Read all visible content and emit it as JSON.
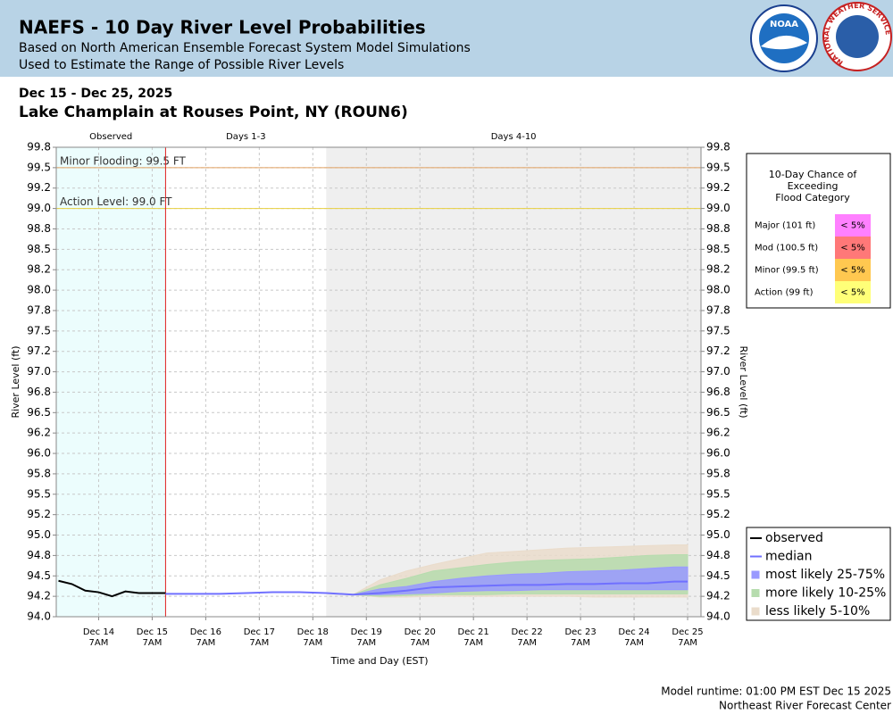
{
  "chart_data": {
    "type": "probability-band",
    "title": "NAEFS - 10 Day River Level Probabilities",
    "subtitle": [
      "Based on North American Ensemble Forecast System Model Simulations",
      "Used to Estimate the Range of Possible River Levels"
    ],
    "logos": [
      "NOAA",
      "NATIONAL WEATHER SERVICE"
    ],
    "date_range": "Dec 15 - Dec 25, 2025",
    "location": "Lake Champlain at Rouses Point, NY (ROUN6)",
    "x_label": "Time and Day (EST)",
    "y_label": "River Level (ft)",
    "footer": [
      "Model runtime: 01:00 PM EST Dec 15 2025",
      "Northeast River Forecast Center"
    ],
    "xlim": [
      "2025-12-13T12:00",
      "2025-12-25T13:00"
    ],
    "xticks": [
      {
        "value": "2025-12-14T07:00",
        "label": "Dec 14",
        "time": "7AM"
      },
      {
        "value": "2025-12-15T07:00",
        "label": "Dec 15",
        "time": "7AM"
      },
      {
        "value": "2025-12-16T07:00",
        "label": "Dec 16",
        "time": "7AM"
      },
      {
        "value": "2025-12-17T07:00",
        "label": "Dec 17",
        "time": "7AM"
      },
      {
        "value": "2025-12-18T07:00",
        "label": "Dec 18",
        "time": "7AM"
      },
      {
        "value": "2025-12-19T07:00",
        "label": "Dec 19",
        "time": "7AM"
      },
      {
        "value": "2025-12-20T07:00",
        "label": "Dec 20",
        "time": "7AM"
      },
      {
        "value": "2025-12-21T07:00",
        "label": "Dec 21",
        "time": "7AM"
      },
      {
        "value": "2025-12-22T07:00",
        "label": "Dec 22",
        "time": "7AM"
      },
      {
        "value": "2025-12-23T07:00",
        "label": "Dec 23",
        "time": "7AM"
      },
      {
        "value": "2025-12-24T07:00",
        "label": "Dec 24",
        "time": "7AM"
      },
      {
        "value": "2025-12-25T07:00",
        "label": "Dec 25",
        "time": "7AM"
      }
    ],
    "ylim": [
      94.0,
      99.75
    ],
    "yticks": [
      {
        "value": 94.0,
        "label": "94.0"
      },
      {
        "value": 94.25,
        "label": "94.2"
      },
      94.5,
      {
        "value": 94.75,
        "label": "94.8"
      },
      {
        "value": 95.0,
        "label": "95.0"
      },
      {
        "value": 95.25,
        "label": "95.2"
      },
      95.5,
      {
        "value": 95.75,
        "label": "95.8"
      },
      {
        "value": 96.0,
        "label": "96.0"
      },
      {
        "value": 96.25,
        "label": "96.2"
      },
      96.5,
      {
        "value": 96.75,
        "label": "96.8"
      },
      {
        "value": 97.0,
        "label": "97.0"
      },
      {
        "value": 97.25,
        "label": "97.2"
      },
      97.5,
      {
        "value": 97.75,
        "label": "97.8"
      },
      {
        "value": 98.0,
        "label": "98.0"
      },
      {
        "value": 98.25,
        "label": "98.2"
      },
      98.5,
      {
        "value": 98.75,
        "label": "98.8"
      },
      {
        "value": 99.0,
        "label": "99.0"
      },
      {
        "value": 99.25,
        "label": "99.2"
      },
      99.5,
      {
        "value": 99.75,
        "label": "99.8"
      }
    ],
    "grid": true,
    "regions": [
      {
        "label": "Observed",
        "start": "2025-12-13T12:00",
        "end": "2025-12-15T13:00",
        "color": "#ecfdfd"
      },
      {
        "label": "Days 1-3",
        "start": "2025-12-15T13:00",
        "end": "2025-12-18T13:00",
        "color": "#ffffff"
      },
      {
        "label": "Days 4-10",
        "start": "2025-12-18T13:00",
        "end": "2025-12-25T13:00",
        "color": "#efefef"
      }
    ],
    "now": "2025-12-15T13:00",
    "thresholds": [
      {
        "label": "Minor Flooding: 99.5 FT",
        "value": 99.5,
        "color": "#e0a060"
      },
      {
        "label": "Action Level: 99.0 FT",
        "value": 99.0,
        "color": "#e8d040"
      }
    ],
    "series": [
      {
        "name": "observed",
        "kind": "line",
        "color": "#000000",
        "x": [
          "2025-12-13T13:00",
          "2025-12-13T19:00",
          "2025-12-14T01:00",
          "2025-12-14T07:00",
          "2025-12-14T13:00",
          "2025-12-14T19:00",
          "2025-12-15T01:00",
          "2025-12-15T07:00",
          "2025-12-15T13:00"
        ],
        "values": [
          94.44,
          94.4,
          94.32,
          94.3,
          94.25,
          94.31,
          94.29,
          94.29,
          94.29
        ]
      },
      {
        "name": "median",
        "kind": "line",
        "color": "#7070ff",
        "x": [
          "2025-12-15T13:00",
          "2025-12-16T01:00",
          "2025-12-16T13:00",
          "2025-12-17T01:00",
          "2025-12-17T13:00",
          "2025-12-18T01:00",
          "2025-12-18T13:00",
          "2025-12-19T01:00",
          "2025-12-19T13:00",
          "2025-12-20T01:00",
          "2025-12-20T13:00",
          "2025-12-21T01:00",
          "2025-12-21T13:00",
          "2025-12-22T01:00",
          "2025-12-22T13:00",
          "2025-12-23T01:00",
          "2025-12-23T13:00",
          "2025-12-24T01:00",
          "2025-12-24T13:00",
          "2025-12-25T01:00",
          "2025-12-25T07:00"
        ],
        "values": [
          94.28,
          94.28,
          94.28,
          94.29,
          94.3,
          94.3,
          94.29,
          94.27,
          94.29,
          94.32,
          94.36,
          94.37,
          94.38,
          94.39,
          94.39,
          94.4,
          94.4,
          94.41,
          94.41,
          94.43,
          94.43
        ]
      },
      {
        "name": "most likely 25-75%",
        "kind": "band",
        "color": "#9999ff",
        "x": [
          "2025-12-15T13:00",
          "2025-12-16T01:00",
          "2025-12-16T13:00",
          "2025-12-17T01:00",
          "2025-12-17T13:00",
          "2025-12-18T01:00",
          "2025-12-18T13:00",
          "2025-12-19T01:00",
          "2025-12-19T13:00",
          "2025-12-20T01:00",
          "2025-12-20T13:00",
          "2025-12-21T01:00",
          "2025-12-21T13:00",
          "2025-12-22T01:00",
          "2025-12-22T13:00",
          "2025-12-23T01:00",
          "2025-12-23T13:00",
          "2025-12-24T01:00",
          "2025-12-24T13:00",
          "2025-12-25T01:00",
          "2025-12-25T07:00"
        ],
        "low": [
          94.28,
          94.28,
          94.28,
          94.29,
          94.3,
          94.3,
          94.29,
          94.27,
          94.27,
          94.28,
          94.29,
          94.31,
          94.32,
          94.32,
          94.33,
          94.33,
          94.33,
          94.33,
          94.33,
          94.33,
          94.33
        ],
        "high": [
          94.28,
          94.28,
          94.28,
          94.29,
          94.3,
          94.3,
          94.29,
          94.27,
          94.34,
          94.37,
          94.43,
          94.47,
          94.5,
          94.52,
          94.53,
          94.55,
          94.56,
          94.57,
          94.59,
          94.61,
          94.61
        ]
      },
      {
        "name": "more likely 10-25%",
        "kind": "band",
        "color": "#b6dcae",
        "x": [
          "2025-12-15T13:00",
          "2025-12-16T01:00",
          "2025-12-16T13:00",
          "2025-12-17T01:00",
          "2025-12-17T13:00",
          "2025-12-18T01:00",
          "2025-12-18T13:00",
          "2025-12-19T01:00",
          "2025-12-19T13:00",
          "2025-12-20T01:00",
          "2025-12-20T13:00",
          "2025-12-21T01:00",
          "2025-12-21T13:00",
          "2025-12-22T01:00",
          "2025-12-22T13:00",
          "2025-12-23T01:00",
          "2025-12-23T13:00",
          "2025-12-24T01:00",
          "2025-12-24T13:00",
          "2025-12-25T01:00",
          "2025-12-25T07:00"
        ],
        "low": [
          94.28,
          94.28,
          94.28,
          94.29,
          94.3,
          94.3,
          94.29,
          94.27,
          94.25,
          94.26,
          94.27,
          94.27,
          94.27,
          94.28,
          94.28,
          94.28,
          94.28,
          94.28,
          94.28,
          94.28,
          94.28
        ],
        "high": [
          94.28,
          94.28,
          94.28,
          94.29,
          94.3,
          94.3,
          94.29,
          94.27,
          94.39,
          94.47,
          94.56,
          94.6,
          94.64,
          94.67,
          94.69,
          94.7,
          94.71,
          94.73,
          94.75,
          94.76,
          94.76
        ]
      },
      {
        "name": "less likely 5-10%",
        "kind": "band",
        "color": "#eadccb",
        "x": [
          "2025-12-15T13:00",
          "2025-12-16T01:00",
          "2025-12-16T13:00",
          "2025-12-17T01:00",
          "2025-12-17T13:00",
          "2025-12-18T01:00",
          "2025-12-18T13:00",
          "2025-12-19T01:00",
          "2025-12-19T13:00",
          "2025-12-20T01:00",
          "2025-12-20T13:00",
          "2025-12-21T01:00",
          "2025-12-21T13:00",
          "2025-12-22T01:00",
          "2025-12-22T13:00",
          "2025-12-23T01:00",
          "2025-12-23T13:00",
          "2025-12-24T01:00",
          "2025-12-24T13:00",
          "2025-12-25T01:00",
          "2025-12-25T07:00"
        ],
        "low": [
          94.28,
          94.28,
          94.28,
          94.29,
          94.3,
          94.3,
          94.29,
          94.27,
          94.24,
          94.24,
          94.25,
          94.25,
          94.25,
          94.25,
          94.25,
          94.25,
          94.24,
          94.24,
          94.24,
          94.24,
          94.24
        ],
        "high": [
          94.28,
          94.28,
          94.28,
          94.29,
          94.3,
          94.3,
          94.29,
          94.27,
          94.45,
          94.56,
          94.64,
          94.71,
          94.78,
          94.8,
          94.82,
          94.84,
          94.85,
          94.86,
          94.87,
          94.88,
          94.88
        ]
      }
    ],
    "flood_table": {
      "title": [
        "10-Day Chance of",
        "Exceeding",
        "Flood Category"
      ],
      "rows": [
        {
          "label": "Major (101 ft)",
          "value": "< 5%",
          "color": "#ff80ff"
        },
        {
          "label": "Mod (100.5 ft)",
          "value": "< 5%",
          "color": "#ff7878"
        },
        {
          "label": "Minor (99.5 ft)",
          "value": "< 5%",
          "color": "#ffc850"
        },
        {
          "label": "Action (99 ft)",
          "value": "< 5%",
          "color": "#ffff78"
        }
      ]
    }
  }
}
